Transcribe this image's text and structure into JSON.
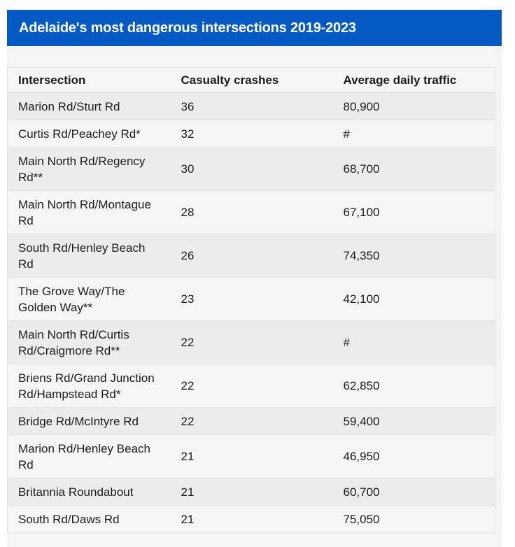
{
  "title_bar": {
    "title": "Adelaide's most dangerous intersections 2019-2023"
  },
  "table": {
    "columns": [
      "Intersection",
      "Casualty crashes",
      "Average daily traffic"
    ],
    "rows": [
      {
        "intersection_lines": [
          "Marion Rd/Sturt Rd"
        ],
        "casualty_crashes": "36",
        "average_daily_traffic": "80,900"
      },
      {
        "intersection_lines": [
          "Curtis Rd/Peachey Rd*"
        ],
        "casualty_crashes": "32",
        "average_daily_traffic": "#"
      },
      {
        "intersection_lines": [
          "Main North Rd/Regency",
          "Rd**"
        ],
        "casualty_crashes": "30",
        "average_daily_traffic": "68,700"
      },
      {
        "intersection_lines": [
          "Main North Rd/Montague",
          "Rd"
        ],
        "casualty_crashes": "28",
        "average_daily_traffic": "67,100"
      },
      {
        "intersection_lines": [
          "South Rd/Henley Beach",
          "Rd"
        ],
        "casualty_crashes": "26",
        "average_daily_traffic": "74,350"
      },
      {
        "intersection_lines": [
          "The Grove Way/The",
          "Golden Way**"
        ],
        "casualty_crashes": "23",
        "average_daily_traffic": "42,100"
      },
      {
        "intersection_lines": [
          "Main North Rd/Curtis",
          "Rd/Craigmore Rd**"
        ],
        "casualty_crashes": "22",
        "average_daily_traffic": "#"
      },
      {
        "intersection_lines": [
          "Briens Rd/Grand Junction",
          "Rd/Hampstead Rd*"
        ],
        "casualty_crashes": "22",
        "average_daily_traffic": "62,850"
      },
      {
        "intersection_lines": [
          "Bridge Rd/McIntyre Rd"
        ],
        "casualty_crashes": "22",
        "average_daily_traffic": "59,400"
      },
      {
        "intersection_lines": [
          "Marion Rd/Henley Beach",
          "Rd"
        ],
        "casualty_crashes": "21",
        "average_daily_traffic": "46,950"
      },
      {
        "intersection_lines": [
          "Britannia Roundabout"
        ],
        "casualty_crashes": "21",
        "average_daily_traffic": "60,700"
      },
      {
        "intersection_lines": [
          "South Rd/Daws Rd"
        ],
        "casualty_crashes": "21",
        "average_daily_traffic": "75,050"
      }
    ]
  },
  "colors": {
    "title_bar_bg": "#0459c2",
    "title_text": "#ffffff",
    "row_odd_bg": "#ececec",
    "row_even_bg": "#f5f5f5",
    "container_bg": "#f5f5f5",
    "row_border": "#e3e3e3",
    "header_border_bottom": "#d8d8d8",
    "body_text": "#1b1b1b",
    "page_bg": "#ffffff"
  },
  "chart_data": {
    "type": "table",
    "title": "Adelaide's most dangerous intersections 2019-2023",
    "columns": [
      "Intersection",
      "Casualty crashes",
      "Average daily traffic"
    ],
    "rows": [
      [
        "Marion Rd/Sturt Rd",
        36,
        "80,900"
      ],
      [
        "Curtis Rd/Peachey Rd*",
        32,
        "#"
      ],
      [
        "Main North Rd/Regency Rd**",
        30,
        "68,700"
      ],
      [
        "Main North Rd/Montague Rd",
        28,
        "67,100"
      ],
      [
        "South Rd/Henley Beach Rd",
        26,
        "74,350"
      ],
      [
        "The Grove Way/The Golden Way**",
        23,
        "42,100"
      ],
      [
        "Main North Rd/Curtis Rd/Craigmore Rd**",
        22,
        "#"
      ],
      [
        "Briens Rd/Grand Junction Rd/Hampstead Rd*",
        22,
        "62,850"
      ],
      [
        "Bridge Rd/McIntyre Rd",
        22,
        "59,400"
      ],
      [
        "Marion Rd/Henley Beach Rd",
        21,
        "46,950"
      ],
      [
        "Britannia Roundabout",
        21,
        "60,700"
      ],
      [
        "South Rd/Daws Rd",
        21,
        "75,050"
      ]
    ]
  }
}
